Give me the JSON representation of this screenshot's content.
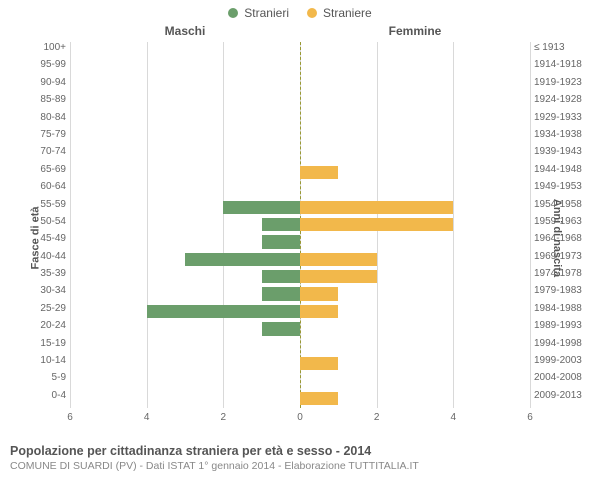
{
  "legend": {
    "male": "Stranieri",
    "female": "Straniere"
  },
  "panel_titles": {
    "left": "Maschi",
    "right": "Femmine"
  },
  "axis_titles": {
    "left": "Fasce di età",
    "right": "Anni di nascita"
  },
  "colors": {
    "male": "#6b9e6b",
    "female": "#f2b84b",
    "grid": "#d9d9d9",
    "center_line": "#999933",
    "background": "#ffffff",
    "text": "#555555",
    "text_light": "#888888"
  },
  "x_axis": {
    "max": 6,
    "ticks": [
      6,
      4,
      2,
      0,
      2,
      4,
      6
    ],
    "tick_positions_pct": [
      0,
      16.67,
      33.33,
      50,
      66.67,
      83.33,
      100
    ]
  },
  "rows": [
    {
      "age": "100+",
      "birth": "≤ 1913",
      "m": 0,
      "f": 0
    },
    {
      "age": "95-99",
      "birth": "1914-1918",
      "m": 0,
      "f": 0
    },
    {
      "age": "90-94",
      "birth": "1919-1923",
      "m": 0,
      "f": 0
    },
    {
      "age": "85-89",
      "birth": "1924-1928",
      "m": 0,
      "f": 0
    },
    {
      "age": "80-84",
      "birth": "1929-1933",
      "m": 0,
      "f": 0
    },
    {
      "age": "75-79",
      "birth": "1934-1938",
      "m": 0,
      "f": 0
    },
    {
      "age": "70-74",
      "birth": "1939-1943",
      "m": 0,
      "f": 0
    },
    {
      "age": "65-69",
      "birth": "1944-1948",
      "m": 0,
      "f": 1
    },
    {
      "age": "60-64",
      "birth": "1949-1953",
      "m": 0,
      "f": 0
    },
    {
      "age": "55-59",
      "birth": "1954-1958",
      "m": 2,
      "f": 4
    },
    {
      "age": "50-54",
      "birth": "1959-1963",
      "m": 1,
      "f": 4
    },
    {
      "age": "45-49",
      "birth": "1964-1968",
      "m": 1,
      "f": 0
    },
    {
      "age": "40-44",
      "birth": "1969-1973",
      "m": 3,
      "f": 2
    },
    {
      "age": "35-39",
      "birth": "1974-1978",
      "m": 1,
      "f": 2
    },
    {
      "age": "30-34",
      "birth": "1979-1983",
      "m": 1,
      "f": 1
    },
    {
      "age": "25-29",
      "birth": "1984-1988",
      "m": 4,
      "f": 1
    },
    {
      "age": "20-24",
      "birth": "1989-1993",
      "m": 1,
      "f": 0
    },
    {
      "age": "15-19",
      "birth": "1994-1998",
      "m": 0,
      "f": 0
    },
    {
      "age": "10-14",
      "birth": "1999-2003",
      "m": 0,
      "f": 1
    },
    {
      "age": "5-9",
      "birth": "2004-2008",
      "m": 0,
      "f": 0
    },
    {
      "age": "0-4",
      "birth": "2009-2013",
      "m": 0,
      "f": 1
    }
  ],
  "caption": {
    "title": "Popolazione per cittadinanza straniera per età e sesso - 2014",
    "sub": "COMUNE DI SUARDI (PV) - Dati ISTAT 1° gennaio 2014 - Elaborazione TUTTITALIA.IT"
  },
  "fontsizes": {
    "legend": 12,
    "panel_title": 12,
    "axis_title": 11,
    "tick": 10,
    "caption_title": 12.5,
    "caption_sub": 10.5
  }
}
